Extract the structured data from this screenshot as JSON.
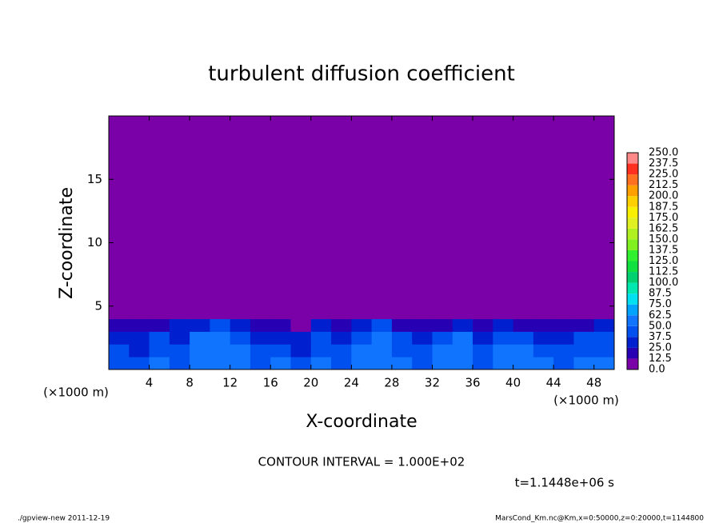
{
  "chart_data": {
    "type": "contour",
    "title": "turbulent diffusion coefficient",
    "xlabel": "X-coordinate",
    "ylabel": "Z-coordinate",
    "x_unit_left": "(×1000 m)",
    "x_unit_right": "(×1000 m)",
    "annotation": "CONTOUR INTERVAL = 1.000E+02",
    "time_label": "t=1.1448e+06 s",
    "footer_left": "./gpview-new  2011-12-19",
    "footer_right": "MarsCond_Km.nc@Km,x=0:50000,z=0:20000,t=1144800",
    "xlim": [
      0,
      50
    ],
    "ylim": [
      0,
      20
    ],
    "xticks": [
      4,
      8,
      12,
      16,
      20,
      24,
      28,
      32,
      36,
      40,
      44,
      48
    ],
    "yticks": [
      5,
      10,
      15
    ],
    "x_edges": [
      0,
      2,
      4,
      6,
      8,
      10,
      12,
      14,
      16,
      18,
      20,
      22,
      24,
      26,
      28,
      30,
      32,
      34,
      36,
      38,
      40,
      42,
      44,
      46,
      48,
      50
    ],
    "z_edges": [
      0,
      1,
      2,
      3,
      4,
      20
    ],
    "values": [
      [
        45,
        40,
        50,
        45,
        55,
        60,
        50,
        45,
        55,
        40,
        50,
        45,
        55,
        60,
        50,
        45,
        55,
        50,
        45,
        60,
        55,
        50,
        45,
        55,
        50
      ],
      [
        40,
        35,
        45,
        40,
        55,
        60,
        50,
        40,
        45,
        35,
        45,
        40,
        55,
        60,
        45,
        40,
        50,
        55,
        40,
        55,
        50,
        45,
        40,
        45,
        45
      ],
      [
        35,
        30,
        40,
        35,
        50,
        55,
        45,
        30,
        35,
        30,
        40,
        35,
        45,
        55,
        40,
        35,
        40,
        50,
        35,
        45,
        40,
        35,
        30,
        40,
        40
      ],
      [
        20,
        15,
        15,
        25,
        35,
        40,
        30,
        15,
        15,
        10,
        25,
        20,
        30,
        40,
        20,
        15,
        20,
        35,
        20,
        25,
        20,
        15,
        15,
        20,
        25
      ],
      [
        0,
        0,
        0,
        0,
        0,
        0,
        0,
        0,
        0,
        0,
        0,
        0,
        0,
        0,
        0,
        0,
        0,
        0,
        0,
        0,
        0,
        0,
        0,
        0,
        0
      ]
    ],
    "levels": [
      {
        "value": 0,
        "label": "0.0"
      },
      {
        "value": 12.5,
        "label": "12.5"
      },
      {
        "value": 25,
        "label": "25.0"
      },
      {
        "value": 37.5,
        "label": "37.5"
      },
      {
        "value": 50,
        "label": "50.0"
      },
      {
        "value": 62.5,
        "label": "62.5"
      },
      {
        "value": 75,
        "label": "75.0"
      },
      {
        "value": 87.5,
        "label": "87.5"
      },
      {
        "value": 100,
        "label": "100.0"
      },
      {
        "value": 112.5,
        "label": "112.5"
      },
      {
        "value": 125,
        "label": "125.0"
      },
      {
        "value": 137.5,
        "label": "137.5"
      },
      {
        "value": 150,
        "label": "150.0"
      },
      {
        "value": 162.5,
        "label": "162.5"
      },
      {
        "value": 175,
        "label": "175.0"
      },
      {
        "value": 187.5,
        "label": "187.5"
      },
      {
        "value": 200,
        "label": "200.0"
      },
      {
        "value": 212.5,
        "label": "212.5"
      },
      {
        "value": 225,
        "label": "225.0"
      },
      {
        "value": 237.5,
        "label": "237.5"
      },
      {
        "value": 250,
        "label": "250.0"
      }
    ],
    "level_colors": [
      "#7a00a8",
      "#2800b4",
      "#0020d0",
      "#0050f0",
      "#1074ff",
      "#00a4ff",
      "#00e0f0",
      "#00e8b0",
      "#00d070",
      "#10e040",
      "#30f030",
      "#80f020",
      "#b0f020",
      "#e0f020",
      "#f8f000",
      "#ffd000",
      "#ffa000",
      "#ff7020",
      "#ff3020",
      "#ff8888"
    ]
  }
}
